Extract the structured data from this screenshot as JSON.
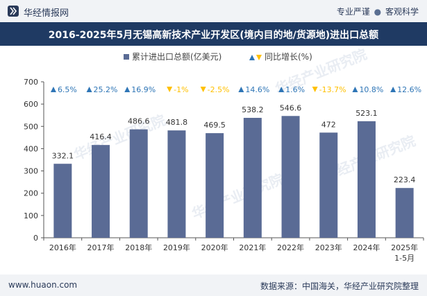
{
  "header": {
    "brand": "华经情报网",
    "slogan_left": "专业严谨",
    "slogan_right": "客观科学"
  },
  "chart_title": "2016-2025年5月无锡高新技术产业开发区(境内目的地/货源地)进出口总额",
  "footer": {
    "site": "www.huaon.com",
    "source": "数据来源：中国海关，华经产业研究院整理"
  },
  "watermark": "华经产业研究院",
  "colors": {
    "bar": "#5a6b95",
    "up": "#2e75b6",
    "down": "#ffc000",
    "header_bg": "#1f3a63",
    "band_bg": "#f1f3f6"
  },
  "chart_data": {
    "type": "bar",
    "categories": [
      "2016年",
      "2017年",
      "2018年",
      "2019年",
      "2020年",
      "2021年",
      "2022年",
      "2023年",
      "2024年",
      "2025年\n1-5月"
    ],
    "series": [
      {
        "name": "累计进出口总额(亿美元)",
        "values": [
          332.1,
          416.4,
          486.6,
          481.8,
          469.5,
          538.2,
          546.6,
          472,
          523.1,
          223.4
        ]
      },
      {
        "name": "同比增长(%)",
        "values": [
          6.5,
          25.2,
          16.9,
          -1,
          -2.5,
          14.6,
          1.6,
          -13.7,
          10.8,
          12.6
        ]
      }
    ],
    "value_labels": [
      "332.1",
      "416.4",
      "486.6",
      "481.8",
      "469.5",
      "538.2",
      "546.6",
      "472",
      "523.1",
      "223.4"
    ],
    "growth_labels": [
      "6.5%",
      "25.2%",
      "16.9%",
      "-1%",
      "-2.5%",
      "14.6%",
      "1.6%",
      "-13.7%",
      "10.8%",
      "12.6%"
    ],
    "ylim": [
      0,
      700
    ],
    "yticks": [
      0,
      100,
      200,
      300,
      400,
      500,
      600,
      700
    ],
    "legend_position": "top-center",
    "grid": false
  }
}
